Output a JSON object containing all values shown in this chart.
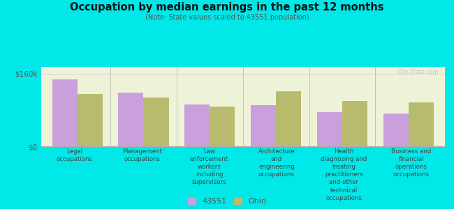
{
  "title": "Occupation by median earnings in the past 12 months",
  "subtitle": "(Note: State values scaled to 43551 population)",
  "categories": [
    "Legal\noccupations",
    "Management\noccupations",
    "Law\nenforcement\nworkers\nincluding\nsupervisors",
    "Architecture\nand\nengineering\noccupations",
    "Health\ndiagnosing and\ntreating\npractitioners\nand other\ntechnical\noccupations",
    "Business and\nfinancial\noperations\noccupations"
  ],
  "values_43551": [
    148000,
    118000,
    92000,
    90000,
    75000,
    72000
  ],
  "values_ohio": [
    115000,
    108000,
    88000,
    122000,
    100000,
    97000
  ],
  "color_43551": "#c9a0dc",
  "color_ohio": "#b8bb6e",
  "ylim": [
    0,
    175000
  ],
  "ytick_vals": [
    0,
    160000
  ],
  "ytick_labels": [
    "$0",
    "$160k"
  ],
  "background_color": "#00e8e8",
  "plot_bg_color": "#eef3d8",
  "legend_label_43551": "43551",
  "legend_label_ohio": "Ohio",
  "watermark": "City-Data.com"
}
